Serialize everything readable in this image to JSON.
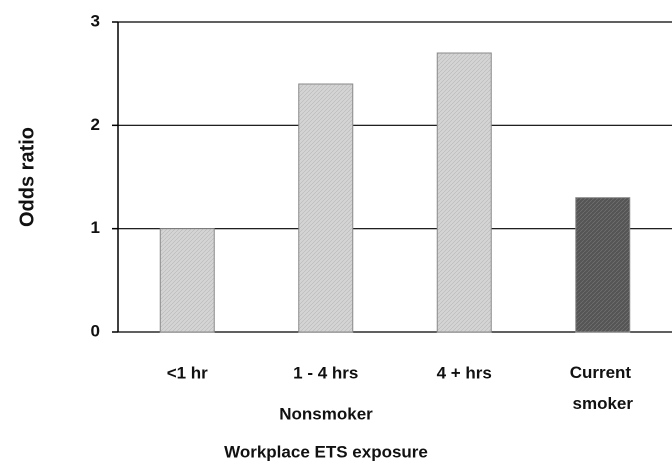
{
  "chart_data": {
    "type": "bar",
    "categories": [
      "<1 hr",
      "1 - 4 hrs",
      "4 + hrs",
      "Current smoker"
    ],
    "values": [
      1.0,
      2.4,
      2.7,
      1.3
    ],
    "colors": [
      "#d4d4d4",
      "#d4d4d4",
      "#d4d4d4",
      "#555555"
    ],
    "ylabel": "Odds ratio",
    "group_label": "Nonsmoker",
    "xlabel": "Workplace ETS exposure",
    "ylim": [
      0,
      3
    ],
    "yticks": [
      0,
      1,
      2,
      3
    ],
    "grid": true
  }
}
